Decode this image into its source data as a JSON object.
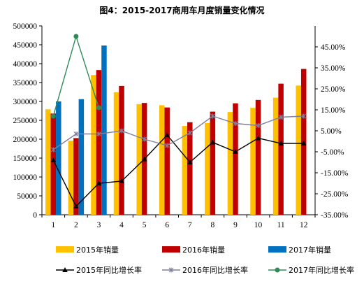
{
  "chart_data": {
    "type": "bar",
    "title": "图4：2015-2017商用车月度销量变化情况",
    "xlabel": "",
    "ylabel": "",
    "categories": [
      "1",
      "2",
      "3",
      "4",
      "5",
      "6",
      "7",
      "8",
      "9",
      "10",
      "11",
      "12"
    ],
    "ylim": [
      0,
      500000
    ],
    "y_ticks": [
      "0",
      "50000",
      "100000",
      "150000",
      "200000",
      "250000",
      "300000",
      "350000",
      "400000",
      "450000",
      "500000"
    ],
    "y2lim": [
      -0.35,
      0.55
    ],
    "y2_ticks": [
      "-35.00%",
      "-25.00%",
      "-15.00%",
      "-5.00%",
      "5.00%",
      "15.00%",
      "25.00%",
      "35.00%",
      "45.00%"
    ],
    "grid": false,
    "legend_position": "bottom",
    "series": [
      {
        "name": "2015年销量",
        "kind": "bar",
        "color": "#FFC000",
        "values": [
          279000,
          196000,
          370000,
          324000,
          293000,
          290000,
          235000,
          243000,
          272000,
          283000,
          310000,
          342000
        ]
      },
      {
        "name": "2016年销量",
        "kind": "bar",
        "color": "#C00000",
        "values": [
          268000,
          203000,
          383000,
          341000,
          296000,
          284000,
          245000,
          273000,
          295000,
          304000,
          347000,
          386000
        ]
      },
      {
        "name": "2017年销量",
        "kind": "bar",
        "color": "#0070C0",
        "values": [
          300000,
          306000,
          448000,
          null,
          null,
          null,
          null,
          null,
          null,
          null,
          null,
          null
        ]
      },
      {
        "name": "2015年同比增长率",
        "kind": "line",
        "axis": "right",
        "color": "#000000",
        "marker": "triangle",
        "values": [
          -0.09,
          -0.31,
          -0.2,
          -0.19,
          -0.085,
          0.03,
          -0.1,
          -0.005,
          -0.05,
          0.015,
          -0.01,
          -0.01
        ]
      },
      {
        "name": "2016年同比增长率",
        "kind": "line",
        "axis": "right",
        "color": "#7F7F9F",
        "marker": "star",
        "values": [
          -0.04,
          0.035,
          0.035,
          0.05,
          0.01,
          -0.02,
          0.04,
          0.12,
          0.085,
          0.075,
          0.115,
          0.12
        ]
      },
      {
        "name": "2017年同比增长率",
        "kind": "line",
        "axis": "right",
        "color": "#2E8B57",
        "marker": "circle",
        "values": [
          0.12,
          0.5,
          0.16,
          null,
          null,
          null,
          null,
          null,
          null,
          null,
          null,
          null
        ]
      }
    ]
  }
}
